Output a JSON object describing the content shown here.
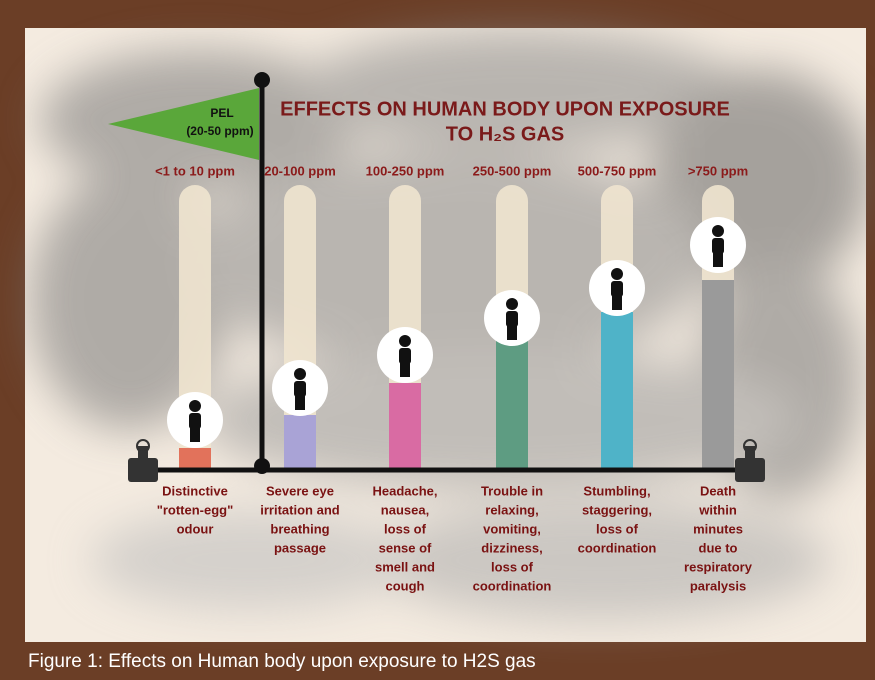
{
  "title": [
    "EFFECTS ON HUMAN BODY UPON EXPOSURE",
    "TO H₂S GAS"
  ],
  "pel": {
    "label": "PEL",
    "range": "(20-50 ppm)",
    "color": "#5aa73a"
  },
  "levels": [
    {
      "range": "<1 to 10 ppm",
      "effect": [
        "Distinctive",
        "\"rotten-egg\"",
        "odour"
      ],
      "color": "#e2725b"
    },
    {
      "range": "20-100 ppm",
      "effect": [
        "Severe eye",
        "irritation and",
        "breathing",
        "passage"
      ],
      "color": "#a9a3d6"
    },
    {
      "range": "100-250 ppm",
      "effect": [
        "Headache,",
        "nausea,",
        "loss of",
        "sense of",
        "smell and",
        "cough"
      ],
      "color": "#d96ba3"
    },
    {
      "range": "250-500 ppm",
      "effect": [
        "Trouble in",
        "relaxing,",
        "vomiting,",
        "dizziness,",
        "loss of",
        "coordination"
      ],
      "color": "#5e9c82"
    },
    {
      "range": "500-750 ppm",
      "effect": [
        "Stumbling,",
        "staggering,",
        "loss of",
        "coordination"
      ],
      "color": "#4fb3c8"
    },
    {
      "range": ">750 ppm",
      "effect": [
        "Death",
        "within",
        "minutes",
        "due to",
        "respiratory",
        "paralysis"
      ],
      "color": "#9a9a9a"
    }
  ],
  "caption": "Figure 1: Effects on Human body upon exposure to H2S gas"
}
